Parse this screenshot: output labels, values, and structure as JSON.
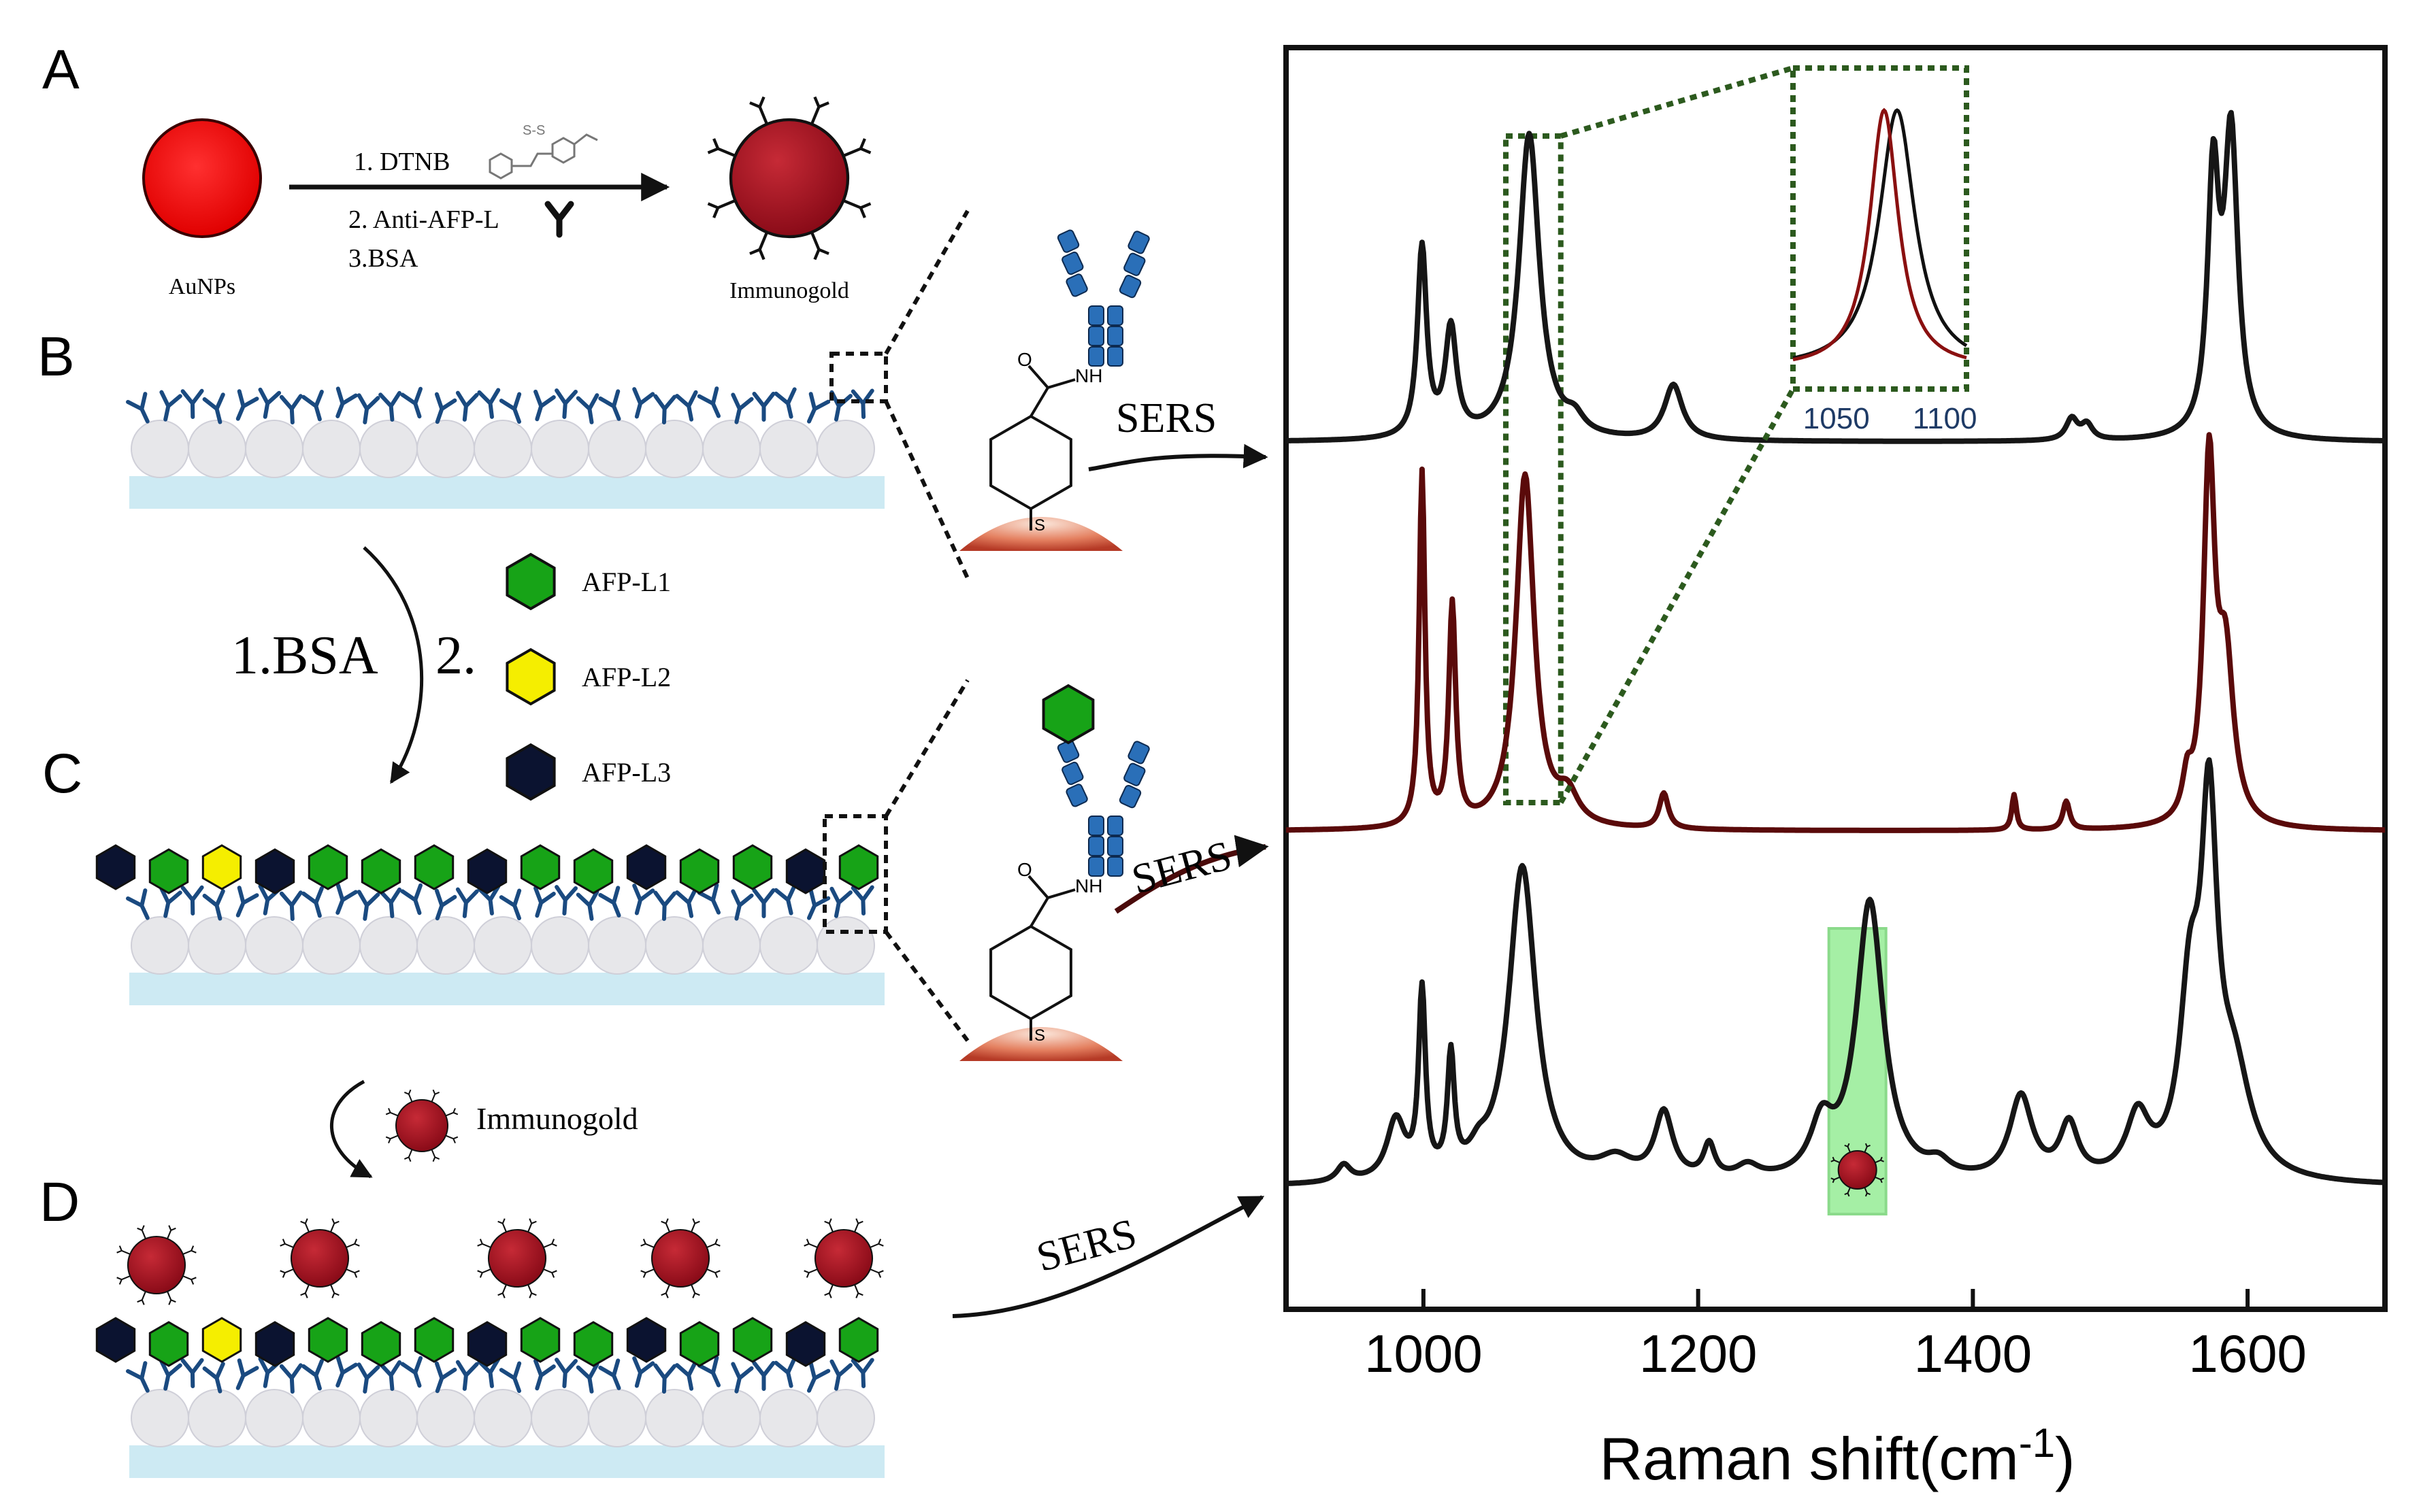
{
  "panels": {
    "a": "A",
    "b": "B",
    "c": "C",
    "d": "D"
  },
  "step_a": {
    "reagents": [
      "1. DTNB",
      "2. Anti-AFP-L",
      "3.BSA"
    ],
    "input_label": "AuNPs",
    "output_label": "Immunogold"
  },
  "step_bc": {
    "bsa": "1.BSA",
    "two": "2."
  },
  "legend": [
    {
      "label": "AFP-L1",
      "color": "#17a317"
    },
    {
      "label": "AFP-L2",
      "color": "#f5ee00"
    },
    {
      "label": "AFP-L3",
      "color": "#0b1330"
    }
  ],
  "step_cd": {
    "label": "Immunogold"
  },
  "sers": {
    "label": "SERS"
  },
  "molecule": {
    "o": "O",
    "nh": "NH",
    "s": "S"
  },
  "colors": {
    "gold": "#a3101f",
    "red_np": "#ff1a1a",
    "antibody": "#1a4a80",
    "ab_zoom": "#2a6fb8",
    "trace_dark": "#161616",
    "trace_red": "#5a0a0a",
    "inset_box": "#2c5a1e",
    "highlight": "#5ce35c"
  },
  "chart_data": {
    "type": "line",
    "xlabel": "Raman shift(cm-1)",
    "xlim": [
      900,
      1700
    ],
    "xticks": [
      1000,
      1200,
      1400,
      1600
    ],
    "series": [
      {
        "name": "top",
        "peaks": [
          [
            999,
            0.62,
            4
          ],
          [
            1020,
            0.35,
            5
          ],
          [
            1077,
            1.0,
            9
          ],
          [
            1110,
            0.05,
            8
          ],
          [
            1182,
            0.18,
            8
          ],
          [
            1472,
            0.07,
            5
          ],
          [
            1483,
            0.05,
            5
          ],
          [
            1575,
            0.82,
            5
          ],
          [
            1588,
            0.97,
            6
          ]
        ]
      },
      {
        "name": "middle",
        "peaks": [
          [
            999,
            1.0,
            2.5
          ],
          [
            1021,
            0.62,
            3
          ],
          [
            1074,
            1.0,
            8
          ],
          [
            1105,
            0.08,
            9
          ],
          [
            1175,
            0.1,
            4
          ],
          [
            1430,
            0.1,
            2
          ],
          [
            1468,
            0.08,
            3
          ],
          [
            1556,
            0.1,
            4
          ],
          [
            1572,
            1.0,
            5
          ],
          [
            1584,
            0.45,
            7
          ]
        ]
      },
      {
        "name": "bottom",
        "peaks": [
          [
            942,
            0.05,
            6
          ],
          [
            980,
            0.18,
            8
          ],
          [
            999,
            0.55,
            3
          ],
          [
            1020,
            0.35,
            3
          ],
          [
            1040,
            0.05,
            8
          ],
          [
            1072,
            0.95,
            12
          ],
          [
            1140,
            0.06,
            15
          ],
          [
            1175,
            0.2,
            8
          ],
          [
            1208,
            0.1,
            5
          ],
          [
            1236,
            0.04,
            10
          ],
          [
            1290,
            0.15,
            10
          ],
          [
            1325,
            0.84,
            12
          ],
          [
            1375,
            0.04,
            10
          ],
          [
            1435,
            0.25,
            10
          ],
          [
            1470,
            0.16,
            8
          ],
          [
            1520,
            0.18,
            10
          ],
          [
            1558,
            0.5,
            9
          ],
          [
            1572,
            1.0,
            7
          ],
          [
            1590,
            0.3,
            15
          ]
        ]
      }
    ],
    "inset": {
      "xticks": [
        1050,
        1100
      ]
    }
  }
}
